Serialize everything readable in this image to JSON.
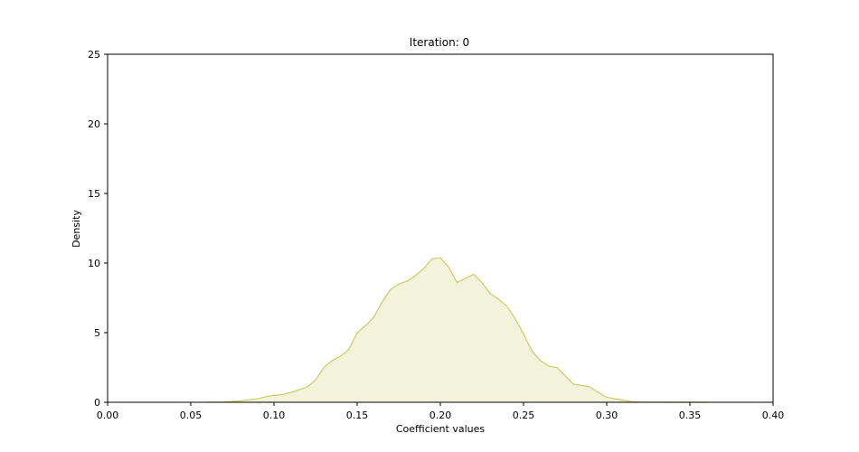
{
  "chart_data": {
    "type": "area",
    "title": "Iteration: 0",
    "xlabel": "Coefficient values",
    "ylabel": "Density",
    "xlim": [
      0.0,
      0.4
    ],
    "ylim": [
      0,
      25
    ],
    "x_ticks": [
      "0.00",
      "0.05",
      "0.10",
      "0.15",
      "0.20",
      "0.25",
      "0.30",
      "0.35",
      "0.40"
    ],
    "y_ticks": [
      "0",
      "5",
      "10",
      "15",
      "20",
      "25"
    ],
    "grid": false,
    "legend": "none",
    "series": [
      {
        "color": "#cccc66",
        "fill_color": "#f3f3dc",
        "points": [
          [
            0.06,
            0.0
          ],
          [
            0.07,
            0.02
          ],
          [
            0.08,
            0.1
          ],
          [
            0.09,
            0.25
          ],
          [
            0.095,
            0.4
          ],
          [
            0.1,
            0.5
          ],
          [
            0.105,
            0.55
          ],
          [
            0.11,
            0.7
          ],
          [
            0.115,
            0.9
          ],
          [
            0.12,
            1.1
          ],
          [
            0.125,
            1.6
          ],
          [
            0.13,
            2.5
          ],
          [
            0.135,
            3.0
          ],
          [
            0.14,
            3.3
          ],
          [
            0.145,
            3.8
          ],
          [
            0.15,
            5.0
          ],
          [
            0.155,
            5.5
          ],
          [
            0.16,
            6.1
          ],
          [
            0.165,
            7.2
          ],
          [
            0.17,
            8.1
          ],
          [
            0.175,
            8.5
          ],
          [
            0.18,
            8.7
          ],
          [
            0.185,
            9.1
          ],
          [
            0.19,
            9.6
          ],
          [
            0.195,
            10.3
          ],
          [
            0.2,
            10.4
          ],
          [
            0.205,
            9.7
          ],
          [
            0.21,
            8.6
          ],
          [
            0.215,
            8.9
          ],
          [
            0.22,
            9.2
          ],
          [
            0.225,
            8.6
          ],
          [
            0.23,
            7.8
          ],
          [
            0.235,
            7.4
          ],
          [
            0.24,
            6.9
          ],
          [
            0.245,
            6.0
          ],
          [
            0.25,
            4.9
          ],
          [
            0.255,
            3.7
          ],
          [
            0.26,
            3.0
          ],
          [
            0.265,
            2.6
          ],
          [
            0.27,
            2.5
          ],
          [
            0.275,
            1.9
          ],
          [
            0.28,
            1.3
          ],
          [
            0.285,
            1.2
          ],
          [
            0.29,
            1.1
          ],
          [
            0.295,
            0.7
          ],
          [
            0.3,
            0.35
          ],
          [
            0.305,
            0.25
          ],
          [
            0.31,
            0.15
          ],
          [
            0.315,
            0.05
          ],
          [
            0.32,
            0.02
          ],
          [
            0.33,
            0.01
          ],
          [
            0.34,
            0.0
          ],
          [
            0.35,
            0.01
          ],
          [
            0.36,
            0.0
          ]
        ]
      }
    ]
  }
}
